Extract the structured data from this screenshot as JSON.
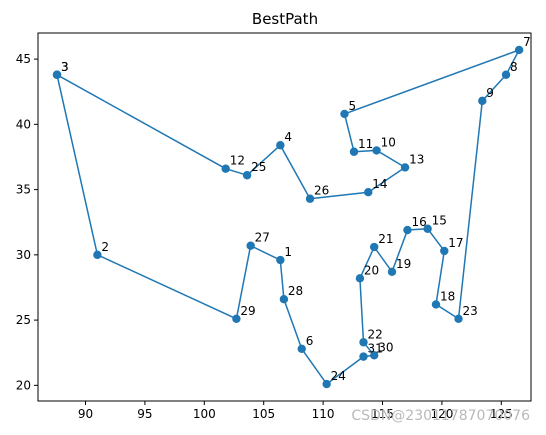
{
  "chart_data": {
    "type": "line",
    "title": "BestPath",
    "xlabel": "",
    "ylabel": "",
    "xlim": [
      86,
      127.5
    ],
    "ylim": [
      18.8,
      47
    ],
    "xticks": [
      90,
      95,
      100,
      105,
      110,
      115,
      120,
      125
    ],
    "yticks": [
      20,
      25,
      30,
      35,
      40,
      45
    ],
    "grid": false,
    "line_color": "#1f77b4",
    "marker": "circle",
    "points": [
      {
        "label": "3",
        "x": 87.6,
        "y": 43.8
      },
      {
        "label": "12",
        "x": 101.8,
        "y": 36.6
      },
      {
        "label": "25",
        "x": 103.6,
        "y": 36.1
      },
      {
        "label": "4",
        "x": 106.4,
        "y": 38.4
      },
      {
        "label": "26",
        "x": 108.9,
        "y": 34.3
      },
      {
        "label": "14",
        "x": 113.8,
        "y": 34.8
      },
      {
        "label": "13",
        "x": 116.9,
        "y": 36.7
      },
      {
        "label": "10",
        "x": 114.5,
        "y": 38.0
      },
      {
        "label": "11",
        "x": 112.6,
        "y": 37.9
      },
      {
        "label": "5",
        "x": 111.8,
        "y": 40.8
      },
      {
        "label": "7",
        "x": 126.5,
        "y": 45.7
      },
      {
        "label": "8",
        "x": 125.4,
        "y": 43.8
      },
      {
        "label": "9",
        "x": 123.4,
        "y": 41.8
      },
      {
        "label": "23",
        "x": 121.4,
        "y": 25.1
      },
      {
        "label": "18",
        "x": 119.5,
        "y": 26.2
      },
      {
        "label": "17",
        "x": 120.2,
        "y": 30.3
      },
      {
        "label": "15",
        "x": 118.8,
        "y": 32.0
      },
      {
        "label": "16",
        "x": 117.1,
        "y": 31.9
      },
      {
        "label": "19",
        "x": 115.8,
        "y": 28.7
      },
      {
        "label": "21",
        "x": 114.3,
        "y": 30.6
      },
      {
        "label": "20",
        "x": 113.1,
        "y": 28.2
      },
      {
        "label": "22",
        "x": 113.4,
        "y": 23.3
      },
      {
        "label": "30",
        "x": 114.3,
        "y": 22.3
      },
      {
        "label": "31",
        "x": 113.4,
        "y": 22.2
      },
      {
        "label": "24",
        "x": 110.3,
        "y": 20.1
      },
      {
        "label": "6",
        "x": 108.2,
        "y": 22.8
      },
      {
        "label": "28",
        "x": 106.7,
        "y": 26.6
      },
      {
        "label": "1",
        "x": 106.4,
        "y": 29.6
      },
      {
        "label": "27",
        "x": 103.9,
        "y": 30.7
      },
      {
        "label": "29",
        "x": 102.7,
        "y": 25.1
      },
      {
        "label": "2",
        "x": 91.0,
        "y": 30.0
      },
      {
        "label": "3",
        "x": 87.6,
        "y": 43.8
      }
    ]
  },
  "watermark": "CSDN@23011787070076"
}
